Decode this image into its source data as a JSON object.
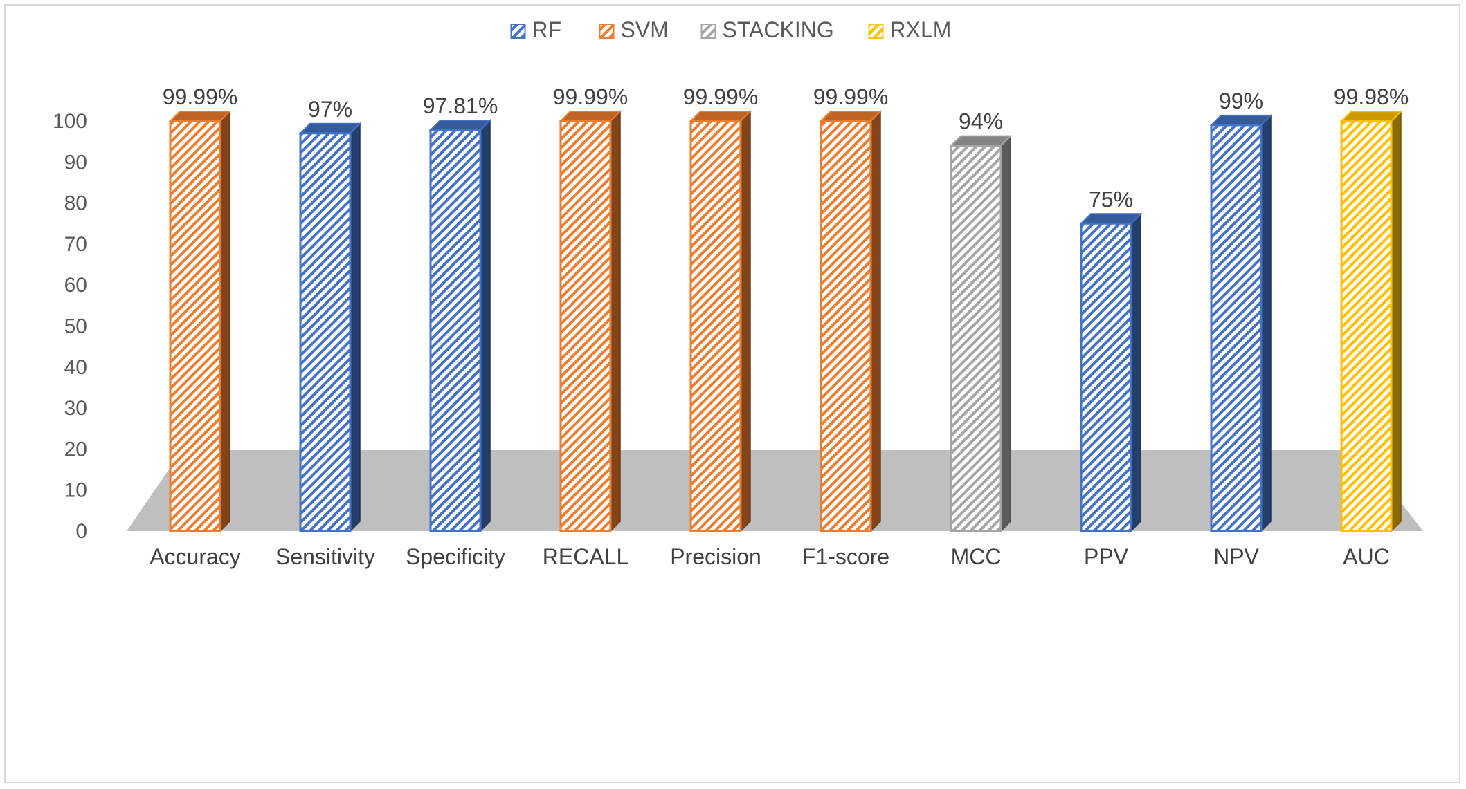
{
  "chart_data": {
    "type": "bar",
    "title": "",
    "xlabel": "",
    "ylabel": "",
    "ylim": [
      0,
      100
    ],
    "yticks": [
      0,
      10,
      20,
      30,
      40,
      50,
      60,
      70,
      80,
      90,
      100
    ],
    "grid": false,
    "legend_position": "top",
    "style": "3d-column-patterned",
    "legend": [
      {
        "name": "RF",
        "color": "#4472c4"
      },
      {
        "name": "SVM",
        "color": "#ed7d31"
      },
      {
        "name": "STACKING",
        "color": "#a5a5a5"
      },
      {
        "name": "RXLM",
        "color": "#ffc000"
      }
    ],
    "categories": [
      "Accuracy",
      "Sensitivity",
      "Specificity",
      "RECALL",
      "Precision",
      "F1-score",
      "MCC",
      "PPV",
      "NPV",
      "AUC"
    ],
    "bars": [
      {
        "category": "Accuracy",
        "series": "SVM",
        "value": 99.99,
        "label": "99.99%"
      },
      {
        "category": "Sensitivity",
        "series": "RF",
        "value": 97,
        "label": "97%"
      },
      {
        "category": "Specificity",
        "series": "RF",
        "value": 97.81,
        "label": "97.81%"
      },
      {
        "category": "RECALL",
        "series": "SVM",
        "value": 99.99,
        "label": "99.99%"
      },
      {
        "category": "Precision",
        "series": "SVM",
        "value": 99.99,
        "label": "99.99%"
      },
      {
        "category": "F1-score",
        "series": "SVM",
        "value": 99.99,
        "label": "99.99%"
      },
      {
        "category": "MCC",
        "series": "STACKING",
        "value": 94,
        "label": "94%"
      },
      {
        "category": "PPV",
        "series": "RF",
        "value": 75,
        "label": "75%"
      },
      {
        "category": "NPV",
        "series": "RF",
        "value": 99,
        "label": "99%"
      },
      {
        "category": "AUC",
        "series": "RXLM",
        "value": 99.98,
        "label": "99.98%"
      }
    ]
  }
}
